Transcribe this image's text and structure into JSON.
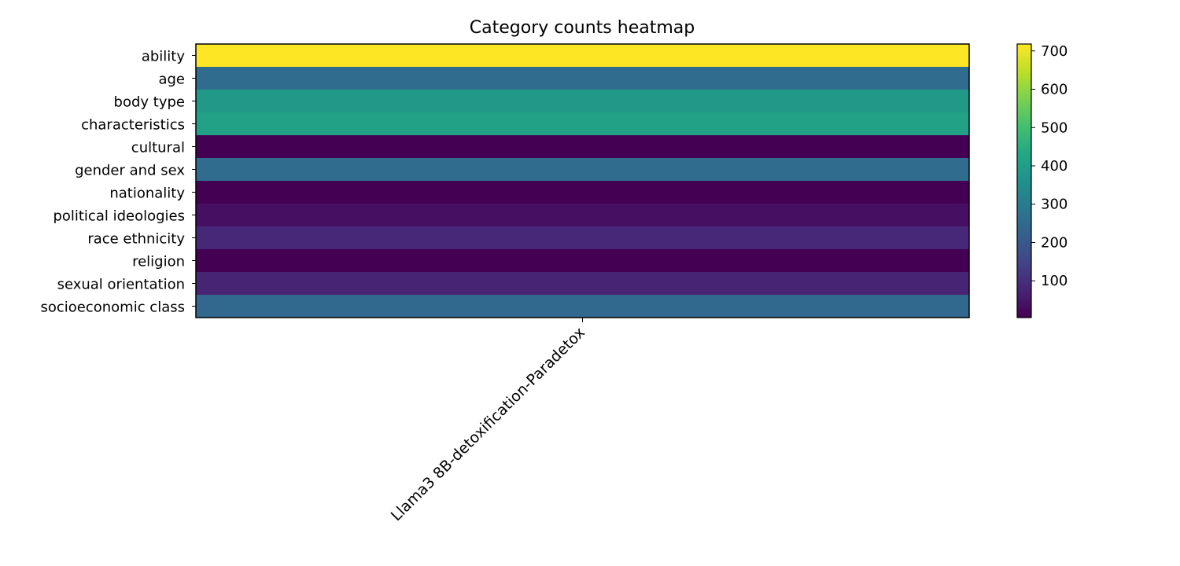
{
  "chart_data": {
    "type": "heatmap",
    "title": "Category counts heatmap",
    "xlabel": "",
    "ylabel": "",
    "columns": [
      "Llama3 8B-detoxification-Paradetox"
    ],
    "rows": [
      "ability",
      "age",
      "body type",
      "characteristics",
      "cultural",
      "gender and sex",
      "nationality",
      "political ideologies",
      "race ethnicity",
      "religion",
      "sexual orientation",
      "socioeconomic class"
    ],
    "values": [
      [
        718
      ],
      [
        255
      ],
      [
        385
      ],
      [
        410
      ],
      [
        4
      ],
      [
        255
      ],
      [
        4
      ],
      [
        32
      ],
      [
        82
      ],
      [
        4
      ],
      [
        75
      ],
      [
        245
      ]
    ],
    "colormap": "viridis",
    "color_range": [
      4,
      718
    ],
    "colorbar_ticks": [
      100,
      200,
      300,
      400,
      500,
      600,
      700
    ],
    "grid": false
  }
}
